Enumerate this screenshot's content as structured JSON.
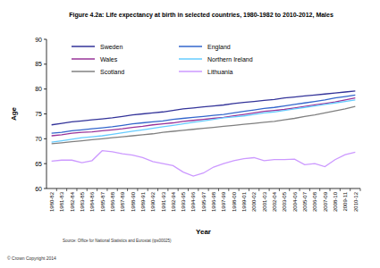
{
  "chart_data": {
    "type": "line",
    "title": "Figure 4.2a: Life expectancy at birth in selected countries, 1980-1982 to 2010-2012, Males",
    "x_label": "Year",
    "y_label": "Age",
    "source": "Source: Office for National Statistics and Eurostat (tps00025)",
    "copyright": "© Crown Copyright 2014",
    "categories": [
      "1980-82",
      "1981-83",
      "1982-84",
      "1983-85",
      "1984-86",
      "1985-87",
      "1986-88",
      "1987-89",
      "1988-90",
      "1989-91",
      "1990-92",
      "1991-93",
      "1992-94",
      "1993-95",
      "1994-96",
      "1995-97",
      "1996-98",
      "1997-99",
      "1998-00",
      "1999-01",
      "2000-02",
      "2001-03",
      "2002-04",
      "2003-05",
      "2004-06",
      "2005-07",
      "2006-08",
      "2007-09",
      "2008-10",
      "2009-11",
      "2010-12"
    ],
    "series": [
      {
        "name": "Sweden",
        "color": "#333399",
        "values": [
          72.8,
          73.1,
          73.4,
          73.6,
          73.8,
          74.0,
          74.2,
          74.5,
          74.8,
          75.0,
          75.2,
          75.4,
          75.7,
          76.0,
          76.2,
          76.4,
          76.6,
          76.8,
          77.1,
          77.3,
          77.5,
          77.7,
          77.9,
          78.2,
          78.4,
          78.6,
          78.8,
          79.0,
          79.2,
          79.4,
          79.6
        ]
      },
      {
        "name": "England",
        "color": "#3366cc",
        "values": [
          71.1,
          71.3,
          71.6,
          71.8,
          72.0,
          72.2,
          72.4,
          72.7,
          73.0,
          73.2,
          73.4,
          73.6,
          73.9,
          74.1,
          74.3,
          74.5,
          74.7,
          74.9,
          75.2,
          75.5,
          75.8,
          76.1,
          76.3,
          76.6,
          76.9,
          77.2,
          77.5,
          77.8,
          78.2,
          78.5,
          78.8
        ]
      },
      {
        "name": "Wales",
        "color": "#993399",
        "values": [
          70.6,
          70.8,
          71.1,
          71.3,
          71.4,
          71.6,
          71.8,
          72.0,
          72.3,
          72.5,
          72.8,
          73.0,
          73.2,
          73.5,
          73.7,
          73.9,
          74.1,
          74.3,
          74.6,
          74.9,
          75.2,
          75.5,
          75.7,
          75.9,
          76.2,
          76.5,
          76.8,
          77.1,
          77.4,
          77.8,
          78.2
        ]
      },
      {
        "name": "Northern Ireland",
        "color": "#66ccff",
        "values": [
          69.3,
          69.6,
          69.9,
          70.2,
          70.4,
          70.6,
          70.9,
          71.2,
          71.5,
          71.8,
          72.1,
          72.4,
          72.7,
          73.0,
          73.3,
          73.6,
          73.9,
          74.2,
          74.4,
          74.6,
          74.9,
          75.2,
          75.4,
          75.7,
          76.0,
          76.3,
          76.6,
          76.9,
          77.2,
          77.5,
          77.8
        ]
      },
      {
        "name": "Scotland",
        "color": "#808080",
        "values": [
          69.0,
          69.2,
          69.4,
          69.6,
          69.8,
          70.0,
          70.2,
          70.4,
          70.6,
          70.8,
          71.0,
          71.3,
          71.5,
          71.7,
          71.9,
          72.1,
          72.3,
          72.5,
          72.7,
          72.9,
          73.1,
          73.3,
          73.5,
          73.8,
          74.1,
          74.5,
          74.8,
          75.2,
          75.6,
          76.0,
          76.5
        ]
      },
      {
        "name": "Lithuania",
        "color": "#cc99ff",
        "values": [
          65.5,
          65.7,
          65.7,
          65.2,
          65.6,
          67.6,
          67.4,
          67.0,
          66.7,
          66.2,
          65.4,
          65.0,
          64.6,
          63.3,
          62.5,
          63.1,
          64.3,
          65.0,
          65.6,
          66.0,
          66.2,
          65.6,
          65.8,
          65.8,
          65.9,
          64.8,
          65.0,
          64.4,
          65.8,
          66.8,
          67.3
        ]
      }
    ],
    "ylim": [
      60,
      90
    ],
    "yticks": [
      60,
      65,
      70,
      75,
      80,
      85,
      90
    ],
    "grid": false
  }
}
